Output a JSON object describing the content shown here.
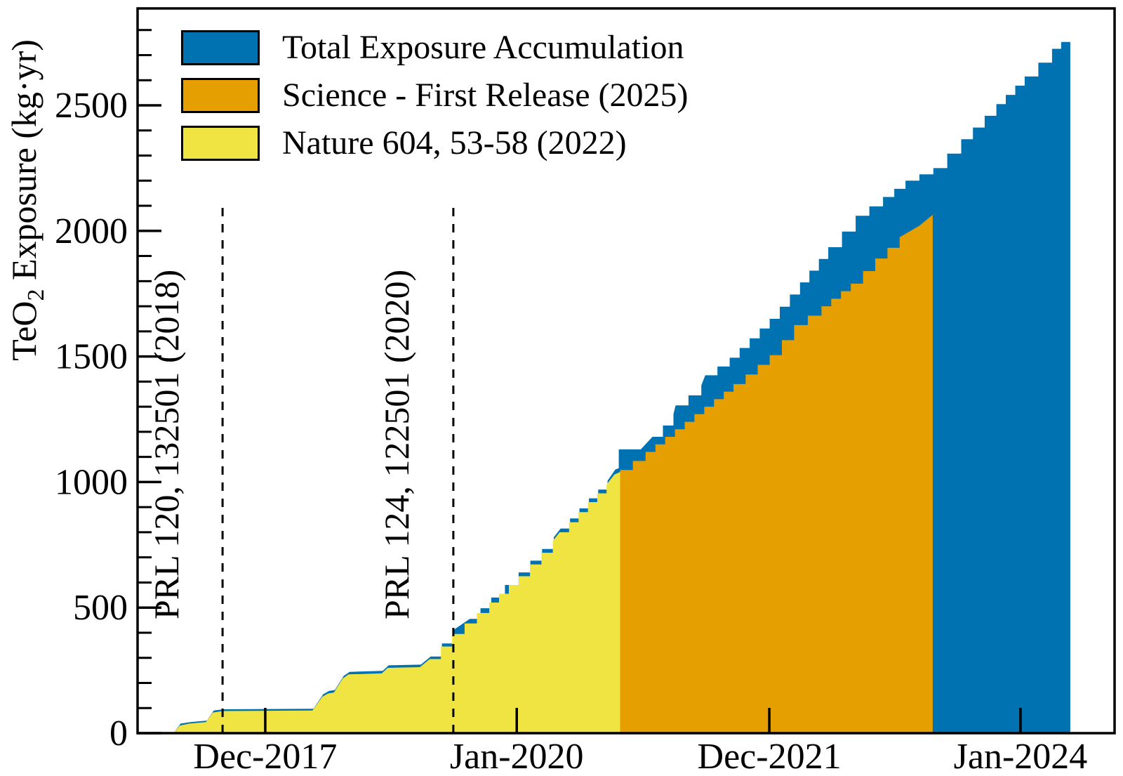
{
  "palette": {
    "blue": "#0072B2",
    "orange": "#E69F00",
    "yellow": "#F0E442",
    "axis": "#000000",
    "background": "#FFFFFF"
  },
  "y_axis": {
    "title_pre": "TeO",
    "title_sub": "2",
    "title_post": " Exposure (kg·yr)",
    "major_ticks": [
      0,
      500,
      1000,
      1500,
      2000,
      2500
    ],
    "minor_step": 100,
    "range": [
      0,
      2890
    ]
  },
  "x_axis": {
    "ticks": [
      {
        "label": "Dec-2017",
        "f": 0.1307
      },
      {
        "label": "Jan-2020",
        "f": 0.3881
      },
      {
        "label": "Dec-2021",
        "f": 0.6466
      },
      {
        "label": "Jan-2024",
        "f": 0.9037
      }
    ]
  },
  "legend": {
    "items": [
      {
        "label": "Total Exposure Accumulation",
        "color": "#0072B2"
      },
      {
        "label": "Science - First Release (2025)",
        "color": "#E69F00"
      },
      {
        "label": "Nature 604, 53-58 (2022)",
        "color": "#F0E442"
      }
    ]
  },
  "annotations": [
    {
      "text": "PRL 120, 132501 (2018)",
      "f": 0.087
    },
    {
      "text": "PRL 124, 122501 (2020)",
      "f": 0.3232
    }
  ],
  "chart_data": {
    "type": "area",
    "x_unit": "time (fraction of axis, Dec-2017=0.131, Jan-2020=0.388, Dec-2021=0.647, Jan-2024=0.904)",
    "y_unit": "kg·yr",
    "ylim": [
      0,
      2890
    ],
    "grid": false,
    "legend_position": "top-left-inside",
    "series": [
      {
        "name": "Total Exposure Accumulation",
        "color": "#0072B2",
        "end_f": 0.9547,
        "final_value": 2780,
        "points": [
          [
            0.037,
            0
          ],
          [
            0.044,
            38
          ],
          [
            0.054,
            44
          ],
          [
            0.071,
            50
          ],
          [
            0.078,
            90
          ],
          [
            0.088,
            95
          ],
          [
            0.18,
            97
          ],
          [
            0.19,
            155
          ],
          [
            0.196,
            168
          ],
          [
            0.202,
            172
          ],
          [
            0.211,
            228
          ],
          [
            0.217,
            244
          ],
          [
            0.251,
            248
          ],
          [
            0.257,
            270
          ],
          [
            0.29,
            273
          ],
          [
            0.3,
            305
          ],
          [
            0.323,
            410
          ],
          [
            0.34,
            455
          ],
          [
            0.362,
            540
          ],
          [
            0.39,
            640
          ],
          [
            0.426,
            780
          ],
          [
            0.433,
            815
          ],
          [
            0.462,
            935
          ],
          [
            0.481,
            1005
          ],
          [
            0.489,
            1050
          ],
          [
            0.4925,
            1055
          ],
          [
            0.4925,
            1130
          ],
          [
            0.515,
            1130
          ],
          [
            0.527,
            1180
          ],
          [
            0.5485,
            1270
          ],
          [
            0.5507,
            1305
          ],
          [
            0.577,
            1385
          ],
          [
            0.581,
            1425
          ],
          [
            0.606,
            1495
          ],
          [
            0.647,
            1650
          ],
          [
            0.678,
            1795
          ],
          [
            0.707,
            1935
          ],
          [
            0.735,
            2060
          ],
          [
            0.763,
            2135
          ],
          [
            0.786,
            2200
          ],
          [
            0.8145,
            2250
          ],
          [
            0.843,
            2365
          ],
          [
            0.879,
            2505
          ],
          [
            0.908,
            2615
          ],
          [
            0.936,
            2725
          ],
          [
            0.9547,
            2780
          ]
        ]
      },
      {
        "name": "Science - First Release (2025)",
        "color": "#E69F00",
        "start_f": 0.4939,
        "end_f": 0.8139,
        "final_value": 2064,
        "points": [
          [
            0.4939,
            1048
          ],
          [
            0.52,
            1120
          ],
          [
            0.55,
            1210
          ],
          [
            0.58,
            1300
          ],
          [
            0.61,
            1390
          ],
          [
            0.647,
            1505
          ],
          [
            0.672,
            1625
          ],
          [
            0.7,
            1700
          ],
          [
            0.73,
            1790
          ],
          [
            0.755,
            1890
          ],
          [
            0.78,
            1975
          ],
          [
            0.8,
            2020
          ],
          [
            0.8139,
            2064
          ]
        ]
      },
      {
        "name": "Nature 604, 53-58 (2022)",
        "color": "#F0E442",
        "start_f": 0.037,
        "end_f": 0.4939,
        "final_value": 1040,
        "points": [
          [
            0.037,
            0
          ],
          [
            0.043,
            30
          ],
          [
            0.053,
            38
          ],
          [
            0.07,
            44
          ],
          [
            0.077,
            82
          ],
          [
            0.087,
            88
          ],
          [
            0.179,
            90
          ],
          [
            0.189,
            145
          ],
          [
            0.195,
            158
          ],
          [
            0.201,
            162
          ],
          [
            0.21,
            218
          ],
          [
            0.216,
            234
          ],
          [
            0.25,
            238
          ],
          [
            0.256,
            260
          ],
          [
            0.289,
            263
          ],
          [
            0.299,
            295
          ],
          [
            0.322,
            395
          ],
          [
            0.36,
            520
          ],
          [
            0.39,
            625
          ],
          [
            0.425,
            765
          ],
          [
            0.432,
            800
          ],
          [
            0.461,
            920
          ],
          [
            0.48,
            990
          ],
          [
            0.488,
            1030
          ],
          [
            0.4939,
            1040
          ]
        ]
      }
    ]
  }
}
